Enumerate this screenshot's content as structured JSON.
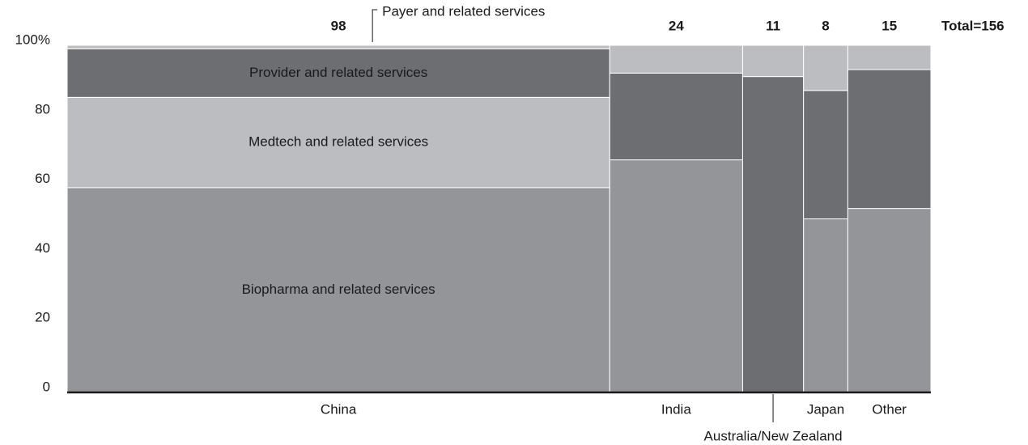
{
  "chart_data": {
    "type": "marimekko",
    "categories": [
      "China",
      "India",
      "Australia/New Zealand",
      "Japan",
      "Other"
    ],
    "totals": [
      98,
      24,
      11,
      8,
      15
    ],
    "grand_total": {
      "value": 156,
      "label": "Total=156"
    },
    "series": [
      {
        "name": "Biopharma and related services",
        "color": "#939598",
        "values": [
          59,
          67,
          0,
          50,
          53
        ]
      },
      {
        "name": "Medtech and related services",
        "color": "#bcbdc0",
        "values": [
          26,
          0,
          0,
          0,
          0
        ]
      },
      {
        "name": "Provider and related services",
        "color": "#6d6e71",
        "values": [
          14,
          25,
          91,
          37,
          40
        ]
      },
      {
        "name": "Payer and related services",
        "color": "#bcbdc0",
        "values": [
          1,
          8,
          9,
          13,
          7
        ]
      }
    ],
    "ylim": [
      0,
      100
    ],
    "yticks": [
      0,
      20,
      40,
      60,
      80,
      {
        "value": 100,
        "label": "100%"
      }
    ]
  }
}
